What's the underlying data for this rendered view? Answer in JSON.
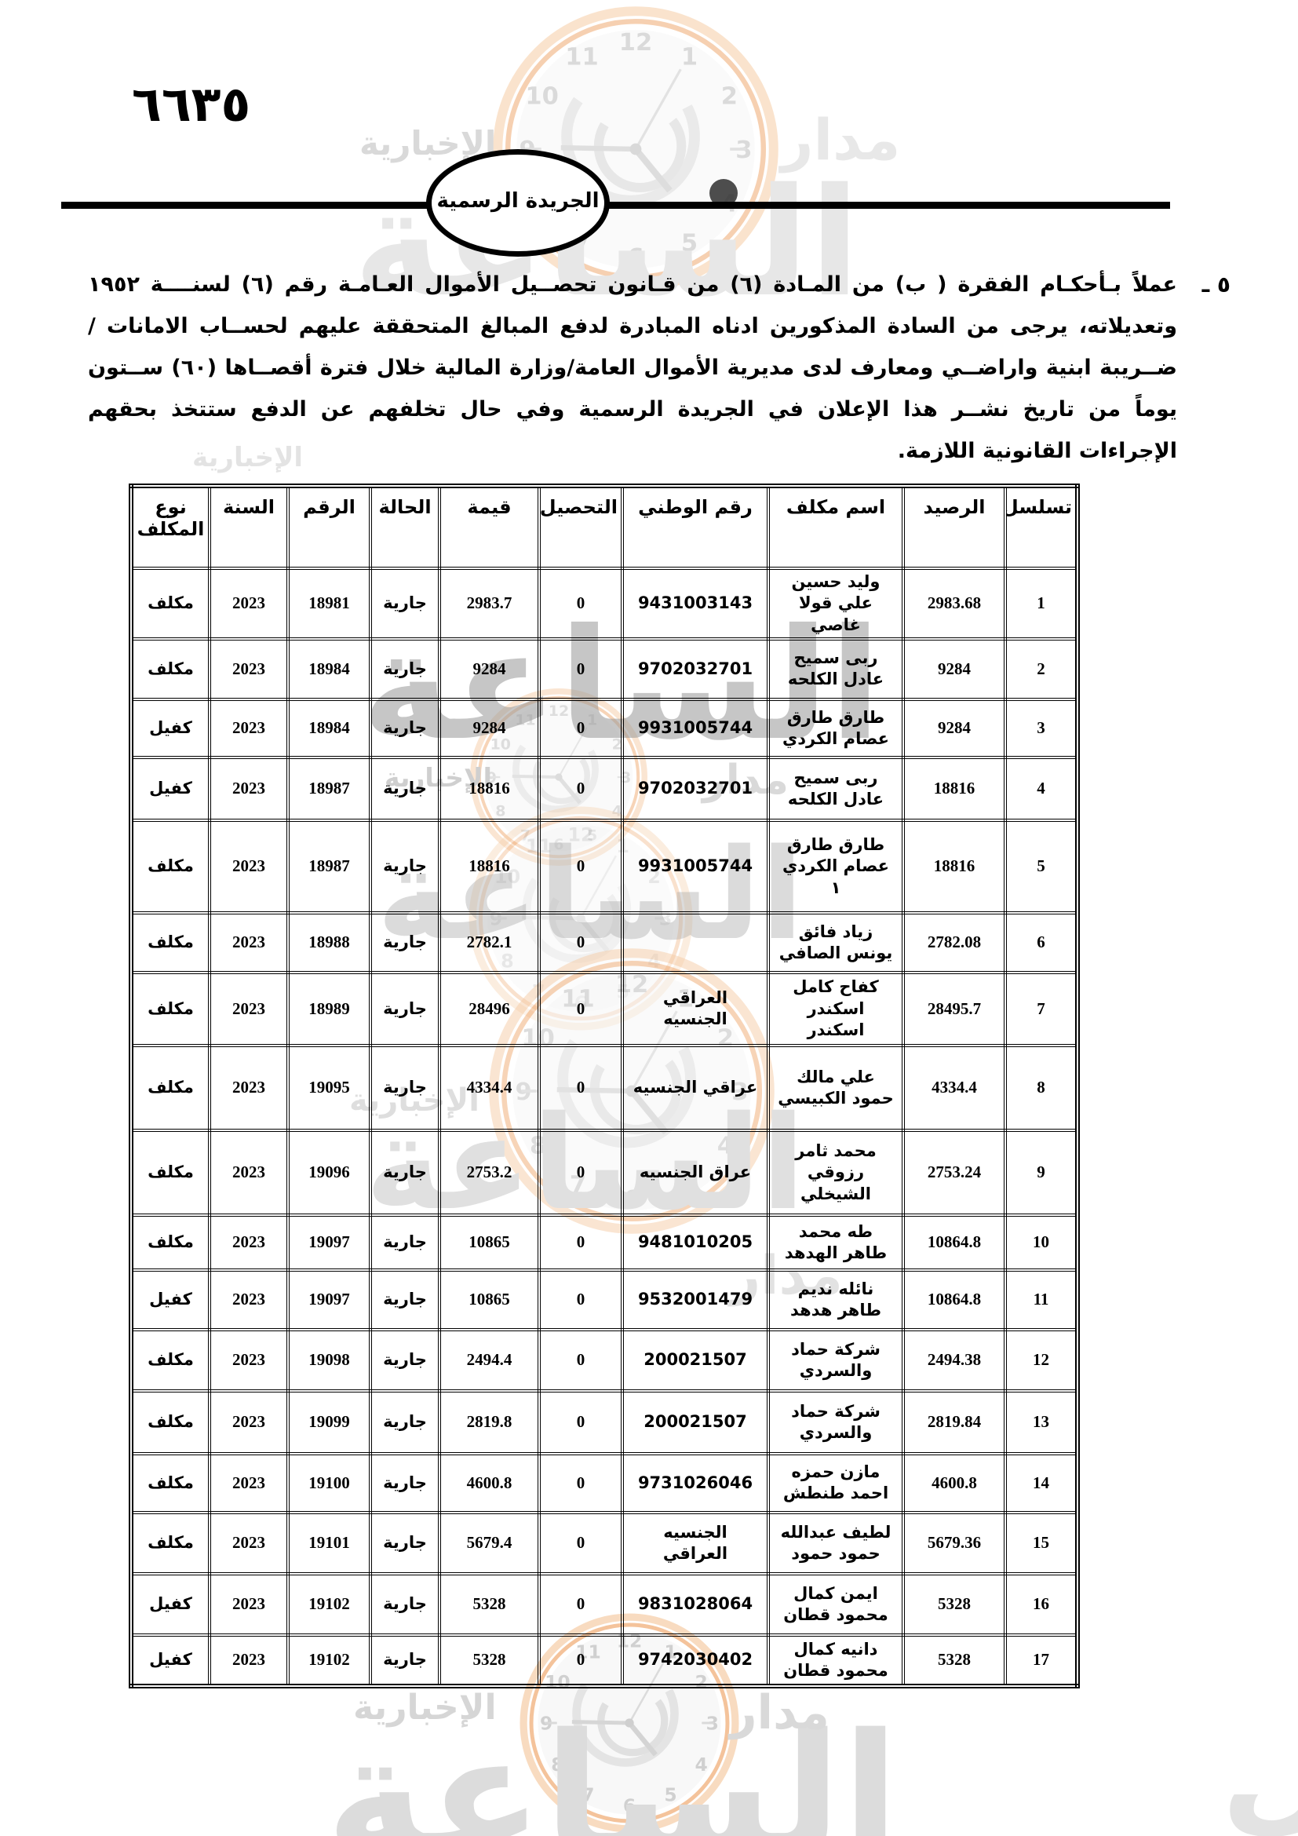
{
  "page": {
    "number": "٦٦٣٥",
    "banner": "الجريدة الرسمية"
  },
  "notice": {
    "marker": "٥ ـ",
    "text": "عملاً بـأحكـام الفقرة ( ب) من المـادة (٦) من قـانون تحصــيل الأموال العـامـة رقم (٦) لسنــــة ١٩٥٢ وتعديلاته، يرجى من السادة المذكورين ادناه المبادرة لدفع المبالغ المتحققة عليهم لحســاب الامانات /ضــريبة ابنية واراضــي ومعارف لدى مديرية الأموال العامة/وزارة المالية خلال فترة أقصــاها (٦٠) ســتون يوماً من تاريخ نشــر هذا الإعلان في الجريدة الرسمية  وفي حال تخلفهم عن الدفع ستتخذ بحقهم الإجراءات القانونية اللازمة."
  },
  "table": {
    "headers": [
      "تسلسل",
      "الرصيد",
      "اسم مكلف",
      "رقم الوطني",
      "التحصيل",
      "قيمة",
      "الحالة",
      "الرقم",
      "السنة",
      "نوع المكلف"
    ],
    "rows": [
      {
        "serial": "1",
        "balance": "2983.68",
        "name": "وليد حسين\nعلي قولا\nغاصي",
        "national_id": "9431003143",
        "collection": "0",
        "value": "2983.7",
        "status": "جارية",
        "number": "18981",
        "year": "2023",
        "type": "مكلف"
      },
      {
        "serial": "2",
        "balance": "9284",
        "name": "ربى سميح\nعادل الكلحه",
        "national_id": "9702032701",
        "collection": "0",
        "value": "9284",
        "status": "جارية",
        "number": "18984",
        "year": "2023",
        "type": "مكلف"
      },
      {
        "serial": "3",
        "balance": "9284",
        "name": "طارق طارق\nعصام الكردي",
        "national_id": "9931005744",
        "collection": "0",
        "value": "9284",
        "status": "جارية",
        "number": "18984",
        "year": "2023",
        "type": "كفيل"
      },
      {
        "serial": "4",
        "balance": "18816",
        "name": "ربى سميح\nعادل الكلحه",
        "national_id": "9702032701",
        "collection": "0",
        "value": "18816",
        "status": "جارية",
        "number": "18987",
        "year": "2023",
        "type": "كفيل"
      },
      {
        "serial": "5",
        "balance": "18816",
        "name": "طارق طارق\nعصام الكردي\n١",
        "national_id": "9931005744",
        "collection": "0",
        "value": "18816",
        "status": "جارية",
        "number": "18987",
        "year": "2023",
        "type": "مكلف"
      },
      {
        "serial": "6",
        "balance": "2782.08",
        "name": "زياد فائق\nيونس الصافي",
        "national_id": "",
        "collection": "0",
        "value": "2782.1",
        "status": "جارية",
        "number": "18988",
        "year": "2023",
        "type": "مكلف"
      },
      {
        "serial": "7",
        "balance": "28495.7",
        "name": "كفاح كامل\nاسكندر\nاسكندر",
        "national_id": "العراقي\nالجنسيه",
        "collection": "0",
        "value": "28496",
        "status": "جارية",
        "number": "18989",
        "year": "2023",
        "type": "مكلف"
      },
      {
        "serial": "8",
        "balance": "4334.4",
        "name": "علي مالك\nحمود الكبيسي",
        "national_id": "عراقي الجنسيه",
        "collection": "0",
        "value": "4334.4",
        "status": "جارية",
        "number": "19095",
        "year": "2023",
        "type": "مكلف"
      },
      {
        "serial": "9",
        "balance": "2753.24",
        "name": "محمد ثامر\nرزوقي\nالشيخلي",
        "national_id": "عراق الجنسيه",
        "collection": "0",
        "value": "2753.2",
        "status": "جارية",
        "number": "19096",
        "year": "2023",
        "type": "مكلف"
      },
      {
        "serial": "10",
        "balance": "10864.8",
        "name": "طه محمد\nطاهر الهدهد",
        "national_id": "9481010205",
        "collection": "0",
        "value": "10865",
        "status": "جارية",
        "number": "19097",
        "year": "2023",
        "type": "مكلف"
      },
      {
        "serial": "11",
        "balance": "10864.8",
        "name": "نائله نديم\nطاهر هدهد",
        "national_id": "9532001479",
        "collection": "0",
        "value": "10865",
        "status": "جارية",
        "number": "19097",
        "year": "2023",
        "type": "كفيل"
      },
      {
        "serial": "12",
        "balance": "2494.38",
        "name": "شركة حماد\nوالسردي",
        "national_id": "200021507",
        "collection": "0",
        "value": "2494.4",
        "status": "جارية",
        "number": "19098",
        "year": "2023",
        "type": "مكلف"
      },
      {
        "serial": "13",
        "balance": "2819.84",
        "name": "شركة حماد\nوالسردي",
        "national_id": "200021507",
        "collection": "0",
        "value": "2819.8",
        "status": "جارية",
        "number": "19099",
        "year": "2023",
        "type": "مكلف"
      },
      {
        "serial": "14",
        "balance": "4600.8",
        "name": "مازن حمزه\nاحمد طنطش",
        "national_id": "9731026046",
        "collection": "0",
        "value": "4600.8",
        "status": "جارية",
        "number": "19100",
        "year": "2023",
        "type": "مكلف"
      },
      {
        "serial": "15",
        "balance": "5679.36",
        "name": "لطيف عبدالله\nحمود حمود",
        "national_id": "الجنسيه\nالعراقي",
        "collection": "0",
        "value": "5679.4",
        "status": "جارية",
        "number": "19101",
        "year": "2023",
        "type": "مكلف"
      },
      {
        "serial": "16",
        "balance": "5328",
        "name": "ايمن كمال\nمحمود قطان",
        "national_id": "9831028064",
        "collection": "0",
        "value": "5328",
        "status": "جارية",
        "number": "19102",
        "year": "2023",
        "type": "كفيل"
      },
      {
        "serial": "17",
        "balance": "5328",
        "name": "دانيه كمال\nمحمود قطان",
        "national_id": "9742030402",
        "collection": "0",
        "value": "5328",
        "status": "جارية",
        "number": "19102",
        "year": "2023",
        "type": "كفيل"
      }
    ]
  },
  "watermark": {
    "brand_word": "مدار",
    "brand_big": "الساعة",
    "brand_big_partial": "ال",
    "brand_small": "الإخبارية",
    "accent_orange": "#f0aa72",
    "accent_gray": "#bfbfbf"
  }
}
